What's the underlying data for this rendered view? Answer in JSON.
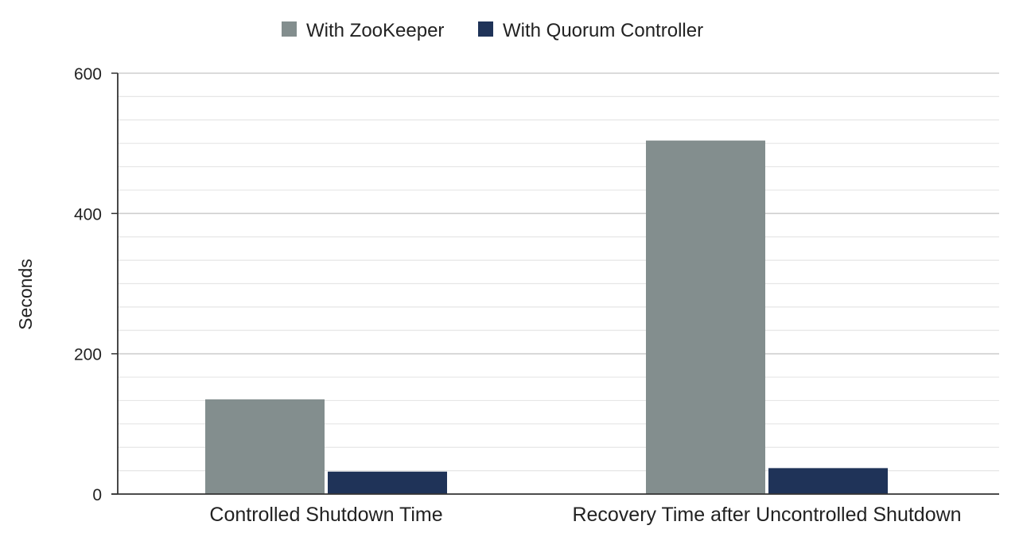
{
  "chart_data": {
    "type": "bar",
    "title": "",
    "xlabel": "",
    "ylabel": "Seconds",
    "ylim": [
      0,
      600
    ],
    "yticks": [
      0,
      200,
      400,
      600
    ],
    "minor_gridlines": true,
    "legend_position": "top-center",
    "categories": [
      "Controlled Shutdown Time",
      "Recovery Time after Uncontrolled Shutdown"
    ],
    "series": [
      {
        "name": "With ZooKeeper",
        "color": "#838e8e",
        "values": [
          135,
          504
        ]
      },
      {
        "name": "With Quorum Controller",
        "color": "#1f3358",
        "values": [
          32,
          37
        ]
      }
    ]
  }
}
